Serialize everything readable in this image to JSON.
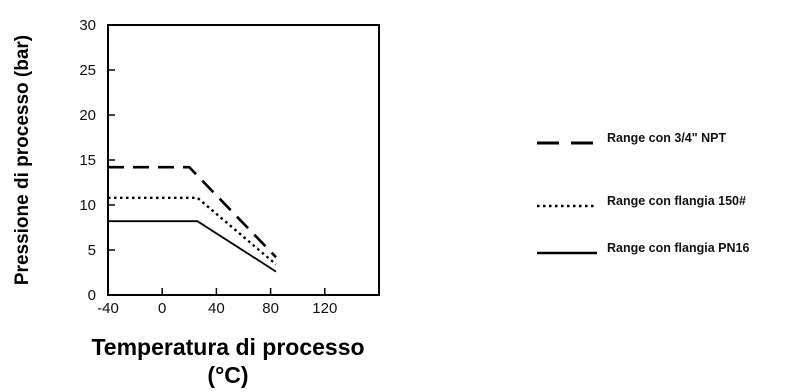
{
  "chart_data": {
    "type": "line",
    "title": "",
    "xlabel_line1": "Temperatura di processo",
    "xlabel_line2": "(°C)",
    "ylabel": "Pressione di processo (bar)",
    "xlim": [
      -40,
      160
    ],
    "ylim": [
      0,
      30
    ],
    "x_ticks": [
      -40,
      0,
      40,
      80,
      120
    ],
    "y_ticks": [
      0,
      5,
      10,
      15,
      20,
      25,
      30
    ],
    "grid": false,
    "legend_position": "right",
    "series": [
      {
        "name": "Range con 3/4\" NPT",
        "style": "dashed",
        "points": [
          [
            -40,
            14.2
          ],
          [
            20,
            14.2
          ],
          [
            84,
            4.2
          ]
        ]
      },
      {
        "name": "Range con flangia 150#",
        "style": "dotted",
        "points": [
          [
            -40,
            10.8
          ],
          [
            26,
            10.8
          ],
          [
            84,
            3.4
          ]
        ]
      },
      {
        "name": "Range con flangia PN16",
        "style": "solid",
        "points": [
          [
            -40,
            8.2
          ],
          [
            26,
            8.2
          ],
          [
            84,
            2.6
          ]
        ]
      }
    ]
  }
}
